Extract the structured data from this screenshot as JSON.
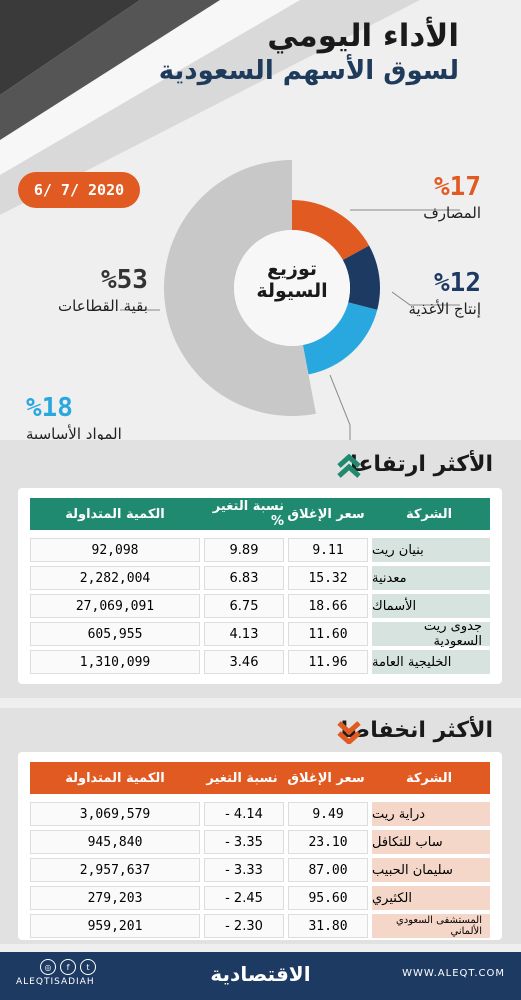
{
  "header": {
    "title_line1": "الأداء اليومي",
    "title_line2": "لسوق الأسهم السعودية",
    "date": "6/ 7/ 2020"
  },
  "liquidity": {
    "center_line1": "توزيع",
    "center_line2": "السيولة",
    "segments": [
      {
        "pct": "%17",
        "name": "المصارف",
        "value": 17,
        "color": "#e05a22"
      },
      {
        "pct": "%12",
        "name": "إنتاج الأغذية",
        "value": 12,
        "color": "#1d3a63"
      },
      {
        "pct": "%18",
        "name": "المواد الأساسية",
        "value": 18,
        "color": "#29a8e0"
      },
      {
        "pct": "%53",
        "name": "بقية القطاعات",
        "value": 53,
        "color": "#c8c8c8"
      }
    ]
  },
  "gainers": {
    "title": "الأكثر ارتفاعا",
    "header_color": "#1f8a70",
    "columns": [
      "الشركة",
      "سعر الإغلاق",
      "نسبة التغير %",
      "الكمية المتداولة"
    ],
    "rows": [
      {
        "name": "بنيان ريت",
        "close": "9.11",
        "change": "9.89",
        "volume": "92,098"
      },
      {
        "name": "معدنية",
        "close": "15.32",
        "change": "6.83",
        "volume": "2,282,004"
      },
      {
        "name": "الأسماك",
        "close": "18.66",
        "change": "6.75",
        "volume": "27,069,091"
      },
      {
        "name": "جدوى ريت السعودية",
        "close": "11.60",
        "change": "4.13",
        "volume": "605,955"
      },
      {
        "name": "الخليجية العامة",
        "close": "11.96",
        "change": "3.46",
        "volume": "1,310,099"
      }
    ]
  },
  "losers": {
    "title": "الأكثر انخفاضا",
    "header_color": "#e05a22",
    "columns": [
      "الشركة",
      "سعر الإغلاق",
      "نسبة التغير",
      "الكمية المتداولة"
    ],
    "rows": [
      {
        "name": "دراية ريت",
        "close": "9.49",
        "change": "- 4.14",
        "volume": "3,069,579"
      },
      {
        "name": "ساب للتكافل",
        "close": "23.10",
        "change": "- 3.35",
        "volume": "945,840"
      },
      {
        "name": "سليمان الحبيب",
        "close": "87.00",
        "change": "- 3.33",
        "volume": "2,957,637"
      },
      {
        "name": "الكثيري",
        "close": "95.60",
        "change": "- 2.45",
        "volume": "279,203"
      },
      {
        "name": "المستشفى السعودي الألماني",
        "close": "31.80",
        "change": "- 2.30",
        "volume": "959,201"
      }
    ]
  },
  "footer": {
    "handle": "ALEQTISADIAH",
    "logo": "الاقتصادية",
    "url": "WWW.ALEQT.COM"
  }
}
